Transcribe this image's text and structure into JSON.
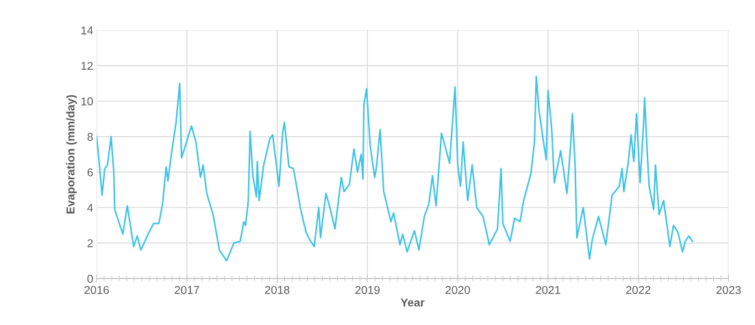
{
  "chart_data": {
    "type": "line",
    "xlabel": "Year",
    "ylabel": "Evaporation (mm/day)",
    "x": [
      2016.0,
      2016.02,
      2016.06,
      2016.09,
      2016.12,
      2016.16,
      2016.19,
      2016.2,
      2016.29,
      2016.34,
      2016.41,
      2016.45,
      2016.49,
      2016.57,
      2016.63,
      2016.69,
      2016.73,
      2016.77,
      2016.79,
      2016.83,
      2016.88,
      2016.92,
      2016.94,
      2016.99,
      2017.05,
      2017.1,
      2017.15,
      2017.18,
      2017.22,
      2017.29,
      2017.36,
      2017.44,
      2017.52,
      2017.59,
      2017.63,
      2017.65,
      2017.68,
      2017.7,
      2017.73,
      2017.77,
      2017.78,
      2017.8,
      2017.85,
      2017.92,
      2017.95,
      2018.02,
      2018.06,
      2018.08,
      2018.13,
      2018.18,
      2018.26,
      2018.32,
      2018.36,
      2018.41,
      2018.46,
      2018.48,
      2018.54,
      2018.59,
      2018.64,
      2018.71,
      2018.74,
      2018.8,
      2018.85,
      2018.89,
      2018.93,
      2018.95,
      2018.96,
      2018.99,
      2019.03,
      2019.08,
      2019.1,
      2019.14,
      2019.18,
      2019.26,
      2019.29,
      2019.36,
      2019.39,
      2019.44,
      2019.52,
      2019.57,
      2019.63,
      2019.68,
      2019.72,
      2019.76,
      2019.82,
      2019.91,
      2019.97,
      2020.0,
      2020.03,
      2020.06,
      2020.11,
      2020.16,
      2020.21,
      2020.28,
      2020.35,
      2020.44,
      2020.48,
      2020.5,
      2020.58,
      2020.63,
      2020.69,
      2020.73,
      2020.81,
      2020.85,
      2020.87,
      2020.9,
      2020.95,
      2020.98,
      2021.0,
      2021.04,
      2021.07,
      2021.14,
      2021.21,
      2021.25,
      2021.27,
      2021.3,
      2021.32,
      2021.39,
      2021.46,
      2021.49,
      2021.56,
      2021.64,
      2021.71,
      2021.79,
      2021.82,
      2021.84,
      2021.89,
      2021.92,
      2021.95,
      2021.98,
      2022.02,
      2022.06,
      2022.07,
      2022.1,
      2022.12,
      2022.17,
      2022.19,
      2022.23,
      2022.28,
      2022.35,
      2022.39,
      2022.44,
      2022.49,
      2022.52,
      2022.56,
      2022.6
    ],
    "series": [
      {
        "color": "#3ec3e6",
        "values": [
          8.0,
          7.0,
          4.7,
          6.2,
          6.4,
          8.0,
          6.0,
          3.9,
          2.5,
          4.1,
          1.8,
          2.4,
          1.6,
          2.5,
          3.1,
          3.1,
          4.2,
          6.3,
          5.5,
          7.1,
          8.8,
          11.0,
          6.8,
          7.6,
          8.6,
          7.7,
          5.7,
          6.4,
          4.8,
          3.6,
          1.6,
          1.0,
          2.0,
          2.1,
          3.2,
          3.0,
          4.4,
          8.3,
          5.8,
          4.6,
          6.6,
          4.4,
          6.4,
          7.9,
          8.1,
          5.2,
          8.2,
          8.8,
          6.3,
          6.2,
          3.9,
          2.6,
          2.2,
          1.8,
          4.0,
          2.3,
          4.8,
          3.9,
          2.8,
          5.7,
          4.9,
          5.3,
          7.3,
          6.0,
          7.0,
          5.6,
          9.8,
          10.7,
          7.5,
          5.7,
          6.3,
          8.4,
          4.9,
          3.2,
          3.7,
          1.9,
          2.5,
          1.5,
          2.7,
          1.6,
          3.5,
          4.2,
          5.8,
          4.1,
          8.2,
          6.5,
          10.8,
          6.4,
          5.2,
          7.7,
          4.4,
          6.4,
          4.0,
          3.5,
          1.9,
          2.8,
          6.2,
          3.1,
          2.1,
          3.4,
          3.2,
          4.4,
          5.9,
          7.7,
          11.4,
          9.5,
          7.7,
          6.7,
          10.6,
          8.5,
          5.4,
          7.2,
          4.8,
          7.5,
          9.3,
          6.4,
          2.3,
          4.0,
          1.1,
          2.2,
          3.5,
          1.9,
          4.7,
          5.2,
          6.2,
          4.9,
          6.6,
          8.1,
          6.6,
          9.3,
          5.4,
          8.9,
          10.2,
          7.0,
          5.2,
          3.9,
          6.4,
          3.6,
          4.4,
          1.8,
          3.0,
          2.6,
          1.5,
          2.1,
          2.4,
          2.1
        ]
      }
    ],
    "xlim": [
      2016,
      2023
    ],
    "xticks": [
      2016,
      2017,
      2018,
      2019,
      2020,
      2021,
      2022,
      2023
    ],
    "ylim": [
      0,
      14
    ],
    "yticks": [
      0,
      2,
      4,
      6,
      8,
      10,
      12,
      14
    ],
    "grid": true,
    "marker": "none",
    "line_style": "solid"
  }
}
